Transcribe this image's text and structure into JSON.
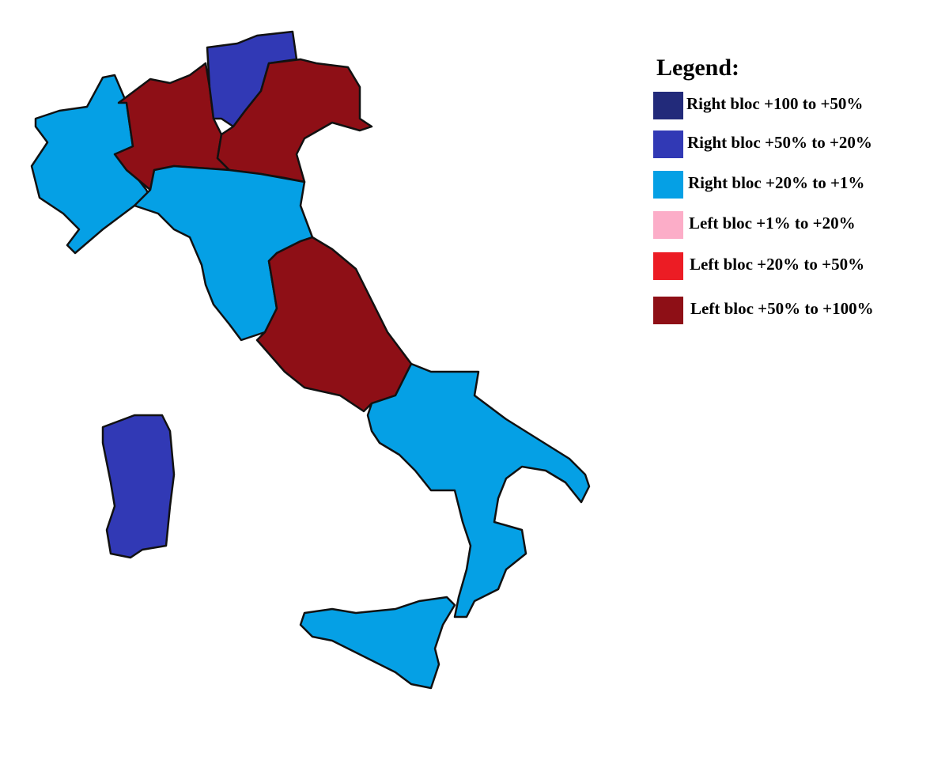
{
  "legend": {
    "title": "Legend:",
    "items": [
      {
        "label": "Right bloc +100 to +50%",
        "color": "#222a7a"
      },
      {
        "label": "Right bloc +50% to +20%",
        "color": "#3139b5"
      },
      {
        "label": "Right bloc +20% to +1%",
        "color": "#05a0e5"
      },
      {
        "label": "Left bloc +1% to +20%",
        "color": "#fcadc8"
      },
      {
        "label": "Left bloc +20% to +50%",
        "color": "#ec1c24"
      },
      {
        "label": "Left bloc +50% to +100%",
        "color": "#8e0f16"
      }
    ]
  }
}
